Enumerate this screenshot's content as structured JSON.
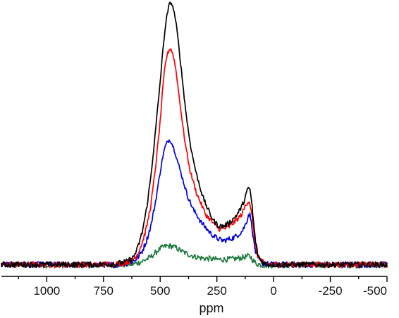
{
  "chart_data": {
    "type": "line",
    "title": "",
    "xlabel": "ppm",
    "ylabel": "",
    "xlim": [
      1200,
      -500
    ],
    "x_reversed": true,
    "ylim": [
      0,
      1.0
    ],
    "grid": false,
    "legend": "none",
    "x_ticks": [
      1000,
      750,
      500,
      250,
      0,
      -250,
      -500
    ],
    "x_tick_labels": [
      "1000",
      "750",
      "500",
      "250",
      "0",
      "-250",
      "-500"
    ],
    "x_minor_ticks": [
      1125,
      875,
      625,
      375,
      125,
      -125,
      -375
    ],
    "series": [
      {
        "color": "#000000",
        "x": [
          1200,
          1100,
          1000,
          900,
          800,
          700,
          650,
          620,
          600,
          580,
          560,
          540,
          520,
          500,
          490,
          480,
          470,
          460,
          455,
          450,
          440,
          430,
          420,
          410,
          400,
          390,
          380,
          370,
          360,
          350,
          340,
          330,
          320,
          310,
          300,
          280,
          260,
          240,
          220,
          200,
          180,
          160,
          140,
          130,
          120,
          110,
          105,
          100,
          95,
          90,
          80,
          70,
          60,
          50,
          40,
          30,
          0,
          -100,
          -200,
          -300,
          -400,
          -500
        ],
        "y": [
          0.01,
          0.01,
          0.01,
          0.01,
          0.01,
          0.012,
          0.02,
          0.035,
          0.07,
          0.13,
          0.22,
          0.35,
          0.52,
          0.7,
          0.8,
          0.89,
          0.95,
          0.99,
          1.0,
          0.995,
          0.97,
          0.92,
          0.85,
          0.77,
          0.69,
          0.61,
          0.54,
          0.48,
          0.43,
          0.39,
          0.35,
          0.32,
          0.29,
          0.26,
          0.24,
          0.2,
          0.17,
          0.155,
          0.155,
          0.165,
          0.18,
          0.2,
          0.23,
          0.25,
          0.28,
          0.3,
          0.295,
          0.27,
          0.23,
          0.18,
          0.1,
          0.05,
          0.03,
          0.02,
          0.015,
          0.012,
          0.01,
          0.01,
          0.01,
          0.01,
          0.01,
          0.01
        ]
      },
      {
        "color": "#ff0000",
        "x": [
          1200,
          1100,
          1000,
          900,
          800,
          700,
          650,
          620,
          600,
          580,
          560,
          540,
          520,
          500,
          490,
          480,
          470,
          460,
          455,
          450,
          440,
          430,
          420,
          410,
          400,
          390,
          380,
          370,
          360,
          350,
          340,
          330,
          320,
          310,
          300,
          280,
          260,
          240,
          220,
          200,
          180,
          160,
          140,
          130,
          120,
          110,
          105,
          100,
          95,
          90,
          80,
          70,
          60,
          50,
          40,
          30,
          0,
          -100,
          -200,
          -300,
          -400,
          -500
        ],
        "y": [
          0.01,
          0.01,
          0.01,
          0.01,
          0.01,
          0.012,
          0.018,
          0.03,
          0.05,
          0.09,
          0.15,
          0.24,
          0.38,
          0.55,
          0.66,
          0.75,
          0.8,
          0.82,
          0.825,
          0.82,
          0.79,
          0.74,
          0.67,
          0.6,
          0.53,
          0.47,
          0.42,
          0.37,
          0.34,
          0.31,
          0.28,
          0.26,
          0.24,
          0.22,
          0.2,
          0.18,
          0.16,
          0.145,
          0.145,
          0.15,
          0.165,
          0.18,
          0.2,
          0.22,
          0.24,
          0.25,
          0.245,
          0.22,
          0.19,
          0.15,
          0.08,
          0.045,
          0.03,
          0.02,
          0.015,
          0.012,
          0.01,
          0.01,
          0.01,
          0.01,
          0.01,
          0.01
        ]
      },
      {
        "color": "#0000e0",
        "x": [
          1200,
          1100,
          1000,
          900,
          800,
          700,
          650,
          620,
          600,
          580,
          560,
          540,
          520,
          500,
          490,
          480,
          470,
          460,
          455,
          450,
          440,
          430,
          420,
          410,
          400,
          390,
          380,
          370,
          360,
          350,
          340,
          330,
          320,
          310,
          300,
          280,
          260,
          240,
          220,
          200,
          180,
          160,
          140,
          130,
          120,
          110,
          105,
          100,
          95,
          90,
          80,
          70,
          60,
          50,
          40,
          30,
          0,
          -100,
          -200,
          -300,
          -400,
          -500
        ],
        "y": [
          0.01,
          0.01,
          0.01,
          0.01,
          0.01,
          0.01,
          0.015,
          0.022,
          0.035,
          0.06,
          0.1,
          0.16,
          0.25,
          0.36,
          0.41,
          0.45,
          0.47,
          0.48,
          0.478,
          0.47,
          0.45,
          0.42,
          0.39,
          0.36,
          0.33,
          0.3,
          0.27,
          0.25,
          0.23,
          0.21,
          0.2,
          0.185,
          0.17,
          0.16,
          0.15,
          0.13,
          0.115,
          0.105,
          0.1,
          0.105,
          0.11,
          0.12,
          0.135,
          0.15,
          0.17,
          0.2,
          0.2,
          0.18,
          0.15,
          0.11,
          0.06,
          0.035,
          0.025,
          0.018,
          0.014,
          0.012,
          0.01,
          0.01,
          0.01,
          0.01,
          0.01,
          0.01
        ]
      },
      {
        "color": "#1e7a3c",
        "x": [
          1200,
          1100,
          1000,
          900,
          800,
          700,
          650,
          620,
          600,
          580,
          560,
          540,
          520,
          500,
          490,
          480,
          470,
          460,
          455,
          450,
          440,
          430,
          420,
          410,
          400,
          390,
          380,
          370,
          360,
          350,
          340,
          330,
          320,
          310,
          300,
          280,
          260,
          240,
          220,
          200,
          180,
          160,
          140,
          130,
          120,
          110,
          105,
          100,
          95,
          90,
          80,
          70,
          60,
          50,
          40,
          30,
          0,
          -100,
          -200,
          -300,
          -400,
          -500
        ],
        "y": [
          0.008,
          0.008,
          0.008,
          0.008,
          0.008,
          0.008,
          0.01,
          0.012,
          0.016,
          0.022,
          0.03,
          0.04,
          0.055,
          0.07,
          0.075,
          0.078,
          0.08,
          0.08,
          0.08,
          0.079,
          0.077,
          0.073,
          0.068,
          0.063,
          0.058,
          0.054,
          0.05,
          0.047,
          0.044,
          0.041,
          0.039,
          0.037,
          0.035,
          0.034,
          0.033,
          0.032,
          0.03,
          0.029,
          0.029,
          0.03,
          0.031,
          0.033,
          0.036,
          0.038,
          0.04,
          0.042,
          0.041,
          0.038,
          0.032,
          0.025,
          0.016,
          0.012,
          0.01,
          0.009,
          0.008,
          0.008,
          0.008,
          0.008,
          0.008,
          0.008,
          0.008,
          0.008
        ]
      }
    ]
  }
}
